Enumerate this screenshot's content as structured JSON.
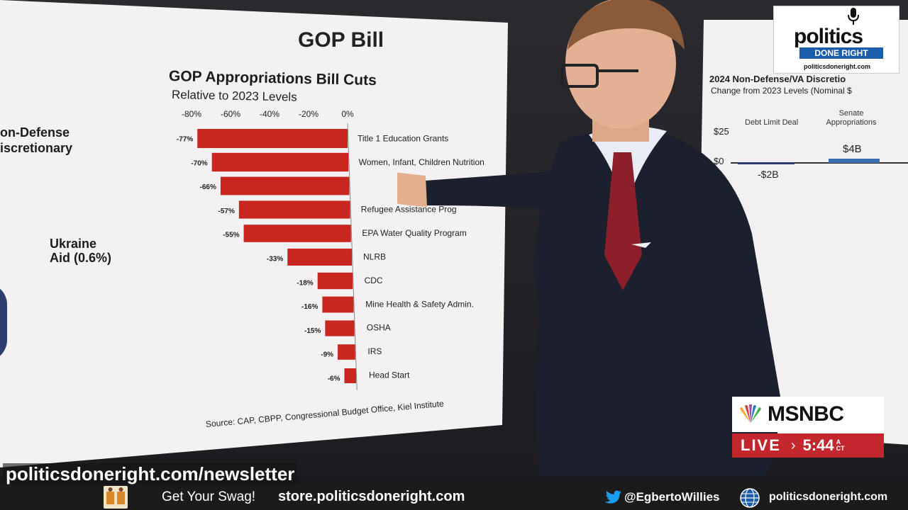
{
  "board": {
    "title": "GOP Bill",
    "left_label_line1": "on-Defense",
    "left_label_line2": "iscretionary",
    "ukraine_line1": "Ukraine",
    "ukraine_line2": "Aid (0.6%)"
  },
  "chart_data": {
    "type": "bar",
    "orientation": "horizontal",
    "title": "GOP Appropriations Bill Cuts",
    "subtitle": "Relative to 2023 Levels",
    "source": "Source: CAP, CBPP, Congressional Budget Office, Kiel Institute",
    "x_ticks": [
      "-80%",
      "-60%",
      "-40%",
      "-20%",
      "0%"
    ],
    "xlim": [
      -80,
      0
    ],
    "grid": false,
    "bar_color": "#c8261f",
    "categories": [
      "Title 1 Education Grants",
      "Women, Infant, Children Nutrition",
      "",
      "Refugee Assistance Prog",
      "EPA Water Quality Program",
      "NLRB",
      "CDC",
      "Mine Health & Safety Admin.",
      "OSHA",
      "IRS",
      "Head Start"
    ],
    "values": [
      -77,
      -70,
      -66,
      -57,
      -55,
      -33,
      -18,
      -16,
      -15,
      -9,
      -6
    ],
    "value_labels": [
      "-77%",
      "-70%",
      "-66%",
      "-57%",
      "-55%",
      "-33%",
      "-18%",
      "-16%",
      "-15%",
      "-9%",
      "-6%"
    ]
  },
  "right_panel": {
    "title": "2024 Non-Defense/VA Discretio",
    "subtitle": "Change from 2023 Levels (Nominal $",
    "tick_25": "$25",
    "tick_0": "$0",
    "cat_1": "Debt Limit Deal",
    "cat_2": "Senate Appropriations",
    "val_1": "-$2B",
    "val_2": "$4B"
  },
  "msnbc": {
    "name": "MSNBC",
    "live": "LIVE",
    "arrow": "›",
    "time": "5:44",
    "tz_1": "A",
    "tz_2": "CT"
  },
  "logo": {
    "politics": "politics",
    "done_right": "DONE RIGHT",
    "url": "politicsdoneright.com"
  },
  "overlay": {
    "newsletter": "politicsdoneright.com/newsletter"
  },
  "bottom_bar": {
    "swag": "Get Your Swag!",
    "store": "store.politicsdoneright.com",
    "twitter": "@EgbertoWillies",
    "site": "politicsdoneright.com"
  },
  "colors": {
    "msnbc_red": "#c4262e",
    "pdr_blue": "#1b5cab",
    "twitter_blue": "#1d9bf0"
  }
}
